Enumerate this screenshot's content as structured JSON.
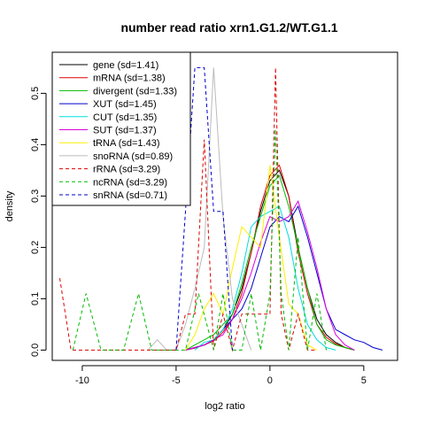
{
  "chart_data": {
    "type": "line",
    "title": "number read ratio xrn1.G1.2/WT.G1.1",
    "xlabel": "log2 ratio",
    "ylabel": "density",
    "xlim": [
      -11.6,
      6.8
    ],
    "ylim": [
      -0.02,
      0.58
    ],
    "xticks": [
      -10,
      -5,
      0,
      5
    ],
    "yticks": [
      0.0,
      0.1,
      0.2,
      0.3,
      0.4,
      0.5
    ],
    "legend_position": "top-left",
    "series": [
      {
        "name": "gene (sd=1.41)",
        "color": "#000000",
        "dash": "solid",
        "x": [
          -4.5,
          -4.0,
          -3.5,
          -3.0,
          -2.5,
          -2.0,
          -1.5,
          -1.0,
          -0.5,
          0.0,
          0.5,
          1.0,
          1.5,
          2.0,
          2.5,
          3.0,
          3.5,
          4.0,
          4.5
        ],
        "y": [
          0.0,
          0.005,
          0.01,
          0.02,
          0.04,
          0.07,
          0.12,
          0.19,
          0.27,
          0.33,
          0.35,
          0.3,
          0.2,
          0.12,
          0.06,
          0.03,
          0.015,
          0.005,
          0.0
        ]
      },
      {
        "name": "mRNA (sd=1.38)",
        "color": "#DF0000",
        "dash": "solid",
        "x": [
          -4.5,
          -4.0,
          -3.5,
          -3.0,
          -2.5,
          -2.0,
          -1.5,
          -1.0,
          -0.5,
          0.0,
          0.5,
          1.0,
          1.5,
          2.0,
          2.5,
          3.0,
          3.5,
          4.0,
          4.5
        ],
        "y": [
          0.0,
          0.004,
          0.01,
          0.018,
          0.035,
          0.06,
          0.11,
          0.19,
          0.28,
          0.34,
          0.36,
          0.3,
          0.19,
          0.11,
          0.05,
          0.025,
          0.012,
          0.005,
          0.0
        ]
      },
      {
        "name": "divergent (sd=1.33)",
        "color": "#00BB00",
        "dash": "solid",
        "x": [
          -4.5,
          -4.0,
          -3.5,
          -3.0,
          -2.5,
          -2.0,
          -1.5,
          -1.0,
          -0.5,
          0.0,
          0.5,
          1.0,
          1.5,
          2.0,
          2.5,
          3.0,
          3.5,
          4.0,
          4.5
        ],
        "y": [
          0.0,
          0.01,
          0.02,
          0.03,
          0.05,
          0.07,
          0.13,
          0.2,
          0.26,
          0.32,
          0.34,
          0.28,
          0.2,
          0.12,
          0.05,
          0.02,
          0.01,
          0.005,
          0.0
        ]
      },
      {
        "name": "XUT (sd=1.45)",
        "color": "#0000CC",
        "dash": "solid",
        "x": [
          -4.5,
          -4.0,
          -3.5,
          -3.0,
          -2.5,
          -2.0,
          -1.5,
          -1.0,
          -0.5,
          0.0,
          0.5,
          1.0,
          1.5,
          2.0,
          2.5,
          3.0,
          3.5,
          4.0,
          4.5,
          5.0,
          5.5,
          6.0
        ],
        "y": [
          0.0,
          0.005,
          0.01,
          0.02,
          0.04,
          0.06,
          0.08,
          0.12,
          0.18,
          0.24,
          0.26,
          0.25,
          0.28,
          0.22,
          0.15,
          0.08,
          0.04,
          0.03,
          0.02,
          0.015,
          0.005,
          0.0
        ]
      },
      {
        "name": "CUT (sd=1.35)",
        "color": "#00DDDD",
        "dash": "solid",
        "x": [
          -4.0,
          -3.5,
          -3.0,
          -2.5,
          -2.0,
          -1.5,
          -1.0,
          -0.5,
          0.0,
          0.5,
          1.0,
          1.5,
          2.0,
          2.5,
          3.0,
          3.5
        ],
        "y": [
          0.0,
          0.015,
          0.02,
          0.04,
          0.08,
          0.15,
          0.24,
          0.26,
          0.27,
          0.28,
          0.22,
          0.12,
          0.05,
          0.02,
          0.005,
          0.0
        ]
      },
      {
        "name": "SUT (sd=1.37)",
        "color": "#DD00DD",
        "dash": "solid",
        "x": [
          -4.5,
          -4.0,
          -3.5,
          -3.0,
          -2.5,
          -2.0,
          -1.5,
          -1.0,
          -0.5,
          0.0,
          0.5,
          1.0,
          1.5,
          2.0,
          2.5,
          3.0,
          3.5,
          4.0,
          4.5
        ],
        "y": [
          0.0,
          0.005,
          0.01,
          0.02,
          0.03,
          0.06,
          0.1,
          0.15,
          0.21,
          0.26,
          0.25,
          0.26,
          0.29,
          0.23,
          0.16,
          0.08,
          0.03,
          0.01,
          0.0
        ]
      },
      {
        "name": "tRNA (sd=1.43)",
        "color": "#FFEE00",
        "dash": "solid",
        "x": [
          -4.5,
          -4.0,
          -3.5,
          -3.0,
          -2.5,
          -2.0,
          -1.5,
          -1.0,
          -0.5,
          0.0,
          0.5,
          1.0,
          1.5,
          2.0,
          2.5
        ],
        "y": [
          0.0,
          0.03,
          0.08,
          0.11,
          0.07,
          0.16,
          0.24,
          0.22,
          0.2,
          0.36,
          0.22,
          0.09,
          0.07,
          0.01,
          0.0
        ]
      },
      {
        "name": "snoRNA (sd=0.89)",
        "color": "#BBBBBB",
        "dash": "solid",
        "x": [
          -6.5,
          -6.0,
          -5.5,
          -5.0,
          -4.5,
          -4.0,
          -3.5,
          -3.0,
          -2.5,
          -2.0,
          -1.5,
          -1.0
        ],
        "y": [
          0.0,
          0.02,
          0.0,
          0.0,
          0.05,
          0.12,
          0.2,
          0.55,
          0.26,
          0.1,
          0.05,
          0.0
        ]
      },
      {
        "name": "rRNA (sd=3.29)",
        "color": "#DD0000",
        "dash": "dashed",
        "x": [
          -11.2,
          -10.6,
          -10.0,
          -9.0,
          -8.0,
          -7.0,
          -6.0,
          -5.0,
          -4.5,
          -4.0,
          -3.5,
          -3.0,
          -2.5,
          -2.0,
          -1.5,
          -1.0,
          -0.5,
          0.0,
          0.3,
          0.6,
          1.0,
          1.5,
          2.0,
          2.5
        ],
        "y": [
          0.14,
          0.0,
          0.0,
          0.0,
          0.0,
          0.0,
          0.0,
          0.0,
          0.07,
          0.07,
          0.41,
          0.0,
          0.07,
          0.0,
          0.07,
          0.07,
          0.07,
          0.07,
          0.55,
          0.07,
          0.0,
          0.07,
          0.0,
          0.0
        ]
      },
      {
        "name": "ncRNA (sd=3.29)",
        "color": "#00BB00",
        "dash": "dashed",
        "x": [
          -10.5,
          -9.8,
          -9.0,
          -8.5,
          -7.8,
          -7.0,
          -6.3,
          -5.5,
          -4.5,
          -3.8,
          -3.0,
          -2.5,
          -2.0,
          -1.5,
          -1.0,
          -0.5,
          0.0,
          0.3,
          0.6,
          1.0,
          1.5,
          2.0,
          2.5,
          3.0
        ],
        "y": [
          0.0,
          0.11,
          0.0,
          0.0,
          0.0,
          0.11,
          0.0,
          0.0,
          0.0,
          0.11,
          0.0,
          0.11,
          0.0,
          0.0,
          0.11,
          0.0,
          0.11,
          0.43,
          0.11,
          0.0,
          0.22,
          0.0,
          0.11,
          0.0
        ]
      },
      {
        "name": "snRNA (sd=0.71)",
        "color": "#0000CC",
        "dash": "dashed",
        "x": [
          -5.0,
          -4.5,
          -4.0,
          -3.5,
          -3.0,
          -2.5,
          -2.0
        ],
        "y": [
          0.0,
          0.27,
          0.55,
          0.55,
          0.27,
          0.27,
          0.0
        ]
      }
    ]
  }
}
